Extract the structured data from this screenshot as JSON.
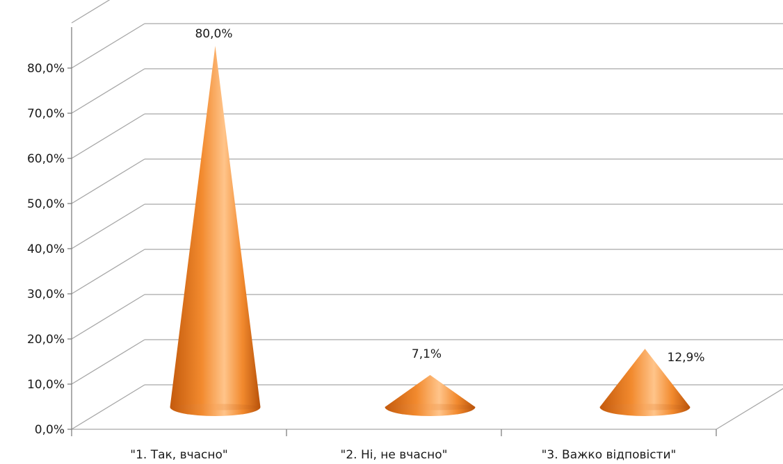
{
  "chart_data": {
    "type": "bar",
    "style": "3d-cone",
    "categories": [
      "\"1. Так, вчасно\"",
      "\"2. Ні, не вчасно\"",
      "\"3. Важко відповісти\""
    ],
    "values": [
      80.0,
      7.1,
      12.9
    ],
    "value_labels": [
      "80,0%",
      "7,1%",
      "12,9%"
    ],
    "yticks": [
      "0,0%",
      "10,0%",
      "20,0%",
      "30,0%",
      "40,0%",
      "50,0%",
      "60,0%",
      "70,0%",
      "80,0%"
    ],
    "ylim": [
      0,
      90
    ],
    "grid": true,
    "legend": "none",
    "colors": {
      "cone_dark": "#c45a0c",
      "cone_mid": "#f28a2e",
      "cone_light": "#ffc48a",
      "grid": "#a6a6a6",
      "axis": "#7f7f7f"
    }
  }
}
